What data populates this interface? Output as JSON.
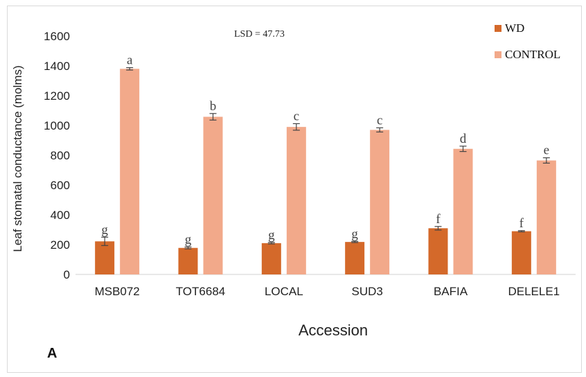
{
  "chart_data": {
    "type": "bar",
    "title": "",
    "panel_label": "A",
    "annotation": "LSD  = 47.73",
    "xlabel": "Accession",
    "ylabel": "Leaf stomatal conductance (molms)",
    "ylim": [
      0,
      1600
    ],
    "yticks": [
      0,
      200,
      400,
      600,
      800,
      1000,
      1200,
      1400,
      1600
    ],
    "grid": false,
    "legend_position": "top-right",
    "categories": [
      "MSB072",
      "TOT6684",
      "LOCAL",
      "SUD3",
      "BAFIA",
      "DELELE1"
    ],
    "series": [
      {
        "name": "WD",
        "color": "#d4692a",
        "values": [
          222,
          178,
          210,
          218,
          310,
          290
        ],
        "errors": [
          28,
          6,
          5,
          4,
          12,
          4
        ],
        "letters": [
          "g",
          "g",
          "g",
          "g",
          "f",
          "f"
        ]
      },
      {
        "name": "CONTROL",
        "color": "#f2a98a",
        "values": [
          1380,
          1058,
          990,
          970,
          843,
          765
        ],
        "errors": [
          8,
          22,
          22,
          14,
          18,
          18
        ],
        "letters": [
          "a",
          "b",
          "c",
          "c",
          "d",
          "e"
        ]
      }
    ]
  }
}
